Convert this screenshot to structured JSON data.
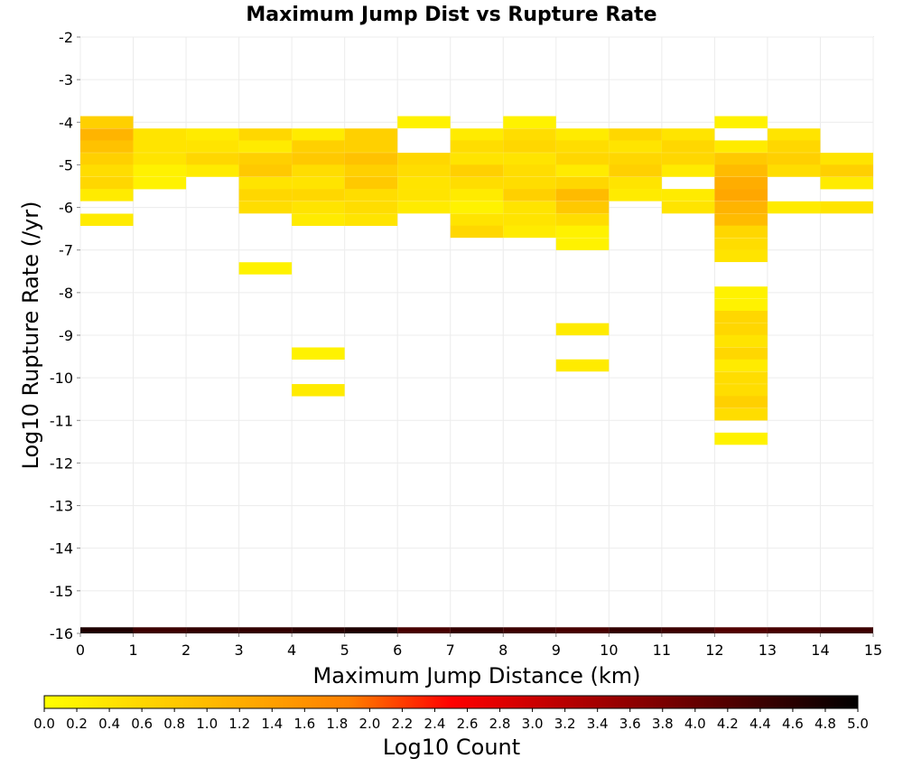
{
  "chart_data": {
    "type": "heatmap",
    "title": "Maximum Jump Dist vs Rupture Rate",
    "xlabel": "Maximum Jump Distance (km)",
    "ylabel": "Log10 Rupture Rate (/yr)",
    "xlim": [
      0,
      15
    ],
    "ylim": [
      -16,
      -2
    ],
    "x_ticks": [
      "0",
      "1",
      "2",
      "3",
      "4",
      "5",
      "6",
      "7",
      "8",
      "9",
      "10",
      "11",
      "12",
      "13",
      "14",
      "15"
    ],
    "y_ticks": [
      "-2",
      "-3",
      "-4",
      "-5",
      "-6",
      "-7",
      "-8",
      "-9",
      "-10",
      "-11",
      "-12",
      "-13",
      "-14",
      "-15",
      "-16"
    ],
    "bin_width_x": 1,
    "bin_height_y": 0.286,
    "grid": true,
    "colorbar": {
      "label": "Log10 Count",
      "range": [
        0,
        5
      ],
      "colormap": [
        "#ffff00",
        "#ffd500",
        "#ffaa00",
        "#ff7f00",
        "#ff0000",
        "#c00000",
        "#800000",
        "#400000",
        "#000000"
      ],
      "ticks": [
        "0.0",
        "0.2",
        "0.4",
        "0.6",
        "0.8",
        "1.0",
        "1.2",
        "1.4",
        "1.6",
        "1.8",
        "2.0",
        "2.2",
        "2.4",
        "2.6",
        "2.8",
        "3.0",
        "3.2",
        "3.4",
        "3.6",
        "3.8",
        "4.0",
        "4.2",
        "4.4",
        "4.6",
        "4.8",
        "5.0"
      ]
    },
    "cells": [
      {
        "x": 0,
        "y": -4.0,
        "v": 0.7
      },
      {
        "x": 0,
        "y": -4.29,
        "v": 1.1
      },
      {
        "x": 0,
        "y": -4.57,
        "v": 0.9
      },
      {
        "x": 0,
        "y": -4.86,
        "v": 0.7
      },
      {
        "x": 0,
        "y": -5.14,
        "v": 0.5
      },
      {
        "x": 0,
        "y": -5.43,
        "v": 0.6
      },
      {
        "x": 0,
        "y": -5.71,
        "v": 0.3
      },
      {
        "x": 0,
        "y": -6.29,
        "v": 0.3
      },
      {
        "x": 1,
        "y": -4.29,
        "v": 0.4
      },
      {
        "x": 1,
        "y": -4.57,
        "v": 0.4
      },
      {
        "x": 1,
        "y": -4.86,
        "v": 0.4
      },
      {
        "x": 1,
        "y": -5.14,
        "v": 0.2
      },
      {
        "x": 1,
        "y": -5.43,
        "v": 0.2
      },
      {
        "x": 2,
        "y": -4.29,
        "v": 0.3
      },
      {
        "x": 2,
        "y": -4.57,
        "v": 0.4
      },
      {
        "x": 2,
        "y": -4.86,
        "v": 0.6
      },
      {
        "x": 2,
        "y": -5.14,
        "v": 0.3
      },
      {
        "x": 3,
        "y": -4.29,
        "v": 0.6
      },
      {
        "x": 3,
        "y": -4.57,
        "v": 0.3
      },
      {
        "x": 3,
        "y": -4.86,
        "v": 0.7
      },
      {
        "x": 3,
        "y": -5.14,
        "v": 0.8
      },
      {
        "x": 3,
        "y": -5.43,
        "v": 0.4
      },
      {
        "x": 3,
        "y": -5.71,
        "v": 0.6
      },
      {
        "x": 3,
        "y": -6.0,
        "v": 0.5
      },
      {
        "x": 3,
        "y": -7.43,
        "v": 0.2
      },
      {
        "x": 4,
        "y": -4.29,
        "v": 0.3
      },
      {
        "x": 4,
        "y": -4.57,
        "v": 0.7
      },
      {
        "x": 4,
        "y": -4.86,
        "v": 0.8
      },
      {
        "x": 4,
        "y": -5.14,
        "v": 0.5
      },
      {
        "x": 4,
        "y": -5.43,
        "v": 0.4
      },
      {
        "x": 4,
        "y": -5.71,
        "v": 0.6
      },
      {
        "x": 4,
        "y": -6.0,
        "v": 0.4
      },
      {
        "x": 4,
        "y": -6.29,
        "v": 0.3
      },
      {
        "x": 4,
        "y": -9.43,
        "v": 0.2
      },
      {
        "x": 4,
        "y": -10.29,
        "v": 0.3
      },
      {
        "x": 5,
        "y": -4.29,
        "v": 0.7
      },
      {
        "x": 5,
        "y": -4.57,
        "v": 0.7
      },
      {
        "x": 5,
        "y": -4.86,
        "v": 0.9
      },
      {
        "x": 5,
        "y": -5.14,
        "v": 0.7
      },
      {
        "x": 5,
        "y": -5.43,
        "v": 0.8
      },
      {
        "x": 5,
        "y": -5.71,
        "v": 0.5
      },
      {
        "x": 5,
        "y": -6.0,
        "v": 0.5
      },
      {
        "x": 5,
        "y": -6.29,
        "v": 0.4
      },
      {
        "x": 6,
        "y": -4.0,
        "v": 0.2
      },
      {
        "x": 6,
        "y": -4.86,
        "v": 0.6
      },
      {
        "x": 6,
        "y": -5.14,
        "v": 0.5
      },
      {
        "x": 6,
        "y": -5.43,
        "v": 0.4
      },
      {
        "x": 6,
        "y": -5.71,
        "v": 0.4
      },
      {
        "x": 6,
        "y": -6.0,
        "v": 0.3
      },
      {
        "x": 7,
        "y": -4.29,
        "v": 0.3
      },
      {
        "x": 7,
        "y": -4.57,
        "v": 0.5
      },
      {
        "x": 7,
        "y": -4.86,
        "v": 0.4
      },
      {
        "x": 7,
        "y": -5.14,
        "v": 0.7
      },
      {
        "x": 7,
        "y": -5.43,
        "v": 0.5
      },
      {
        "x": 7,
        "y": -5.71,
        "v": 0.3
      },
      {
        "x": 7,
        "y": -6.0,
        "v": 0.2
      },
      {
        "x": 7,
        "y": -6.29,
        "v": 0.4
      },
      {
        "x": 7,
        "y": -6.57,
        "v": 0.6
      },
      {
        "x": 8,
        "y": -4.0,
        "v": 0.2
      },
      {
        "x": 8,
        "y": -4.29,
        "v": 0.5
      },
      {
        "x": 8,
        "y": -4.57,
        "v": 0.6
      },
      {
        "x": 8,
        "y": -4.86,
        "v": 0.4
      },
      {
        "x": 8,
        "y": -5.14,
        "v": 0.5
      },
      {
        "x": 8,
        "y": -5.43,
        "v": 0.5
      },
      {
        "x": 8,
        "y": -5.71,
        "v": 0.7
      },
      {
        "x": 8,
        "y": -6.0,
        "v": 0.4
      },
      {
        "x": 8,
        "y": -6.29,
        "v": 0.4
      },
      {
        "x": 8,
        "y": -6.57,
        "v": 0.3
      },
      {
        "x": 9,
        "y": -4.29,
        "v": 0.3
      },
      {
        "x": 9,
        "y": -4.57,
        "v": 0.5
      },
      {
        "x": 9,
        "y": -4.86,
        "v": 0.6
      },
      {
        "x": 9,
        "y": -5.14,
        "v": 0.3
      },
      {
        "x": 9,
        "y": -5.43,
        "v": 0.6
      },
      {
        "x": 9,
        "y": -5.71,
        "v": 1.0
      },
      {
        "x": 9,
        "y": -6.0,
        "v": 0.8
      },
      {
        "x": 9,
        "y": -6.29,
        "v": 0.5
      },
      {
        "x": 9,
        "y": -6.57,
        "v": 0.2
      },
      {
        "x": 9,
        "y": -6.86,
        "v": 0.2
      },
      {
        "x": 9,
        "y": -8.86,
        "v": 0.3
      },
      {
        "x": 9,
        "y": -9.71,
        "v": 0.3
      },
      {
        "x": 10,
        "y": -4.29,
        "v": 0.6
      },
      {
        "x": 10,
        "y": -4.57,
        "v": 0.4
      },
      {
        "x": 10,
        "y": -4.86,
        "v": 0.6
      },
      {
        "x": 10,
        "y": -5.14,
        "v": 0.7
      },
      {
        "x": 10,
        "y": -5.43,
        "v": 0.4
      },
      {
        "x": 10,
        "y": -5.71,
        "v": 0.3
      },
      {
        "x": 11,
        "y": -4.29,
        "v": 0.4
      },
      {
        "x": 11,
        "y": -4.57,
        "v": 0.6
      },
      {
        "x": 11,
        "y": -4.86,
        "v": 0.6
      },
      {
        "x": 11,
        "y": -5.14,
        "v": 0.3
      },
      {
        "x": 11,
        "y": -5.71,
        "v": 0.3
      },
      {
        "x": 11,
        "y": -6.0,
        "v": 0.4
      },
      {
        "x": 12,
        "y": -4.0,
        "v": 0.2
      },
      {
        "x": 12,
        "y": -4.57,
        "v": 0.3
      },
      {
        "x": 12,
        "y": -4.86,
        "v": 0.8
      },
      {
        "x": 12,
        "y": -5.14,
        "v": 1.0
      },
      {
        "x": 12,
        "y": -5.43,
        "v": 1.2
      },
      {
        "x": 12,
        "y": -5.71,
        "v": 1.3
      },
      {
        "x": 12,
        "y": -6.0,
        "v": 1.1
      },
      {
        "x": 12,
        "y": -6.29,
        "v": 1.0
      },
      {
        "x": 12,
        "y": -6.57,
        "v": 0.6
      },
      {
        "x": 12,
        "y": -6.86,
        "v": 0.5
      },
      {
        "x": 12,
        "y": -7.14,
        "v": 0.4
      },
      {
        "x": 12,
        "y": -8.0,
        "v": 0.2
      },
      {
        "x": 12,
        "y": -8.29,
        "v": 0.2
      },
      {
        "x": 12,
        "y": -8.57,
        "v": 0.6
      },
      {
        "x": 12,
        "y": -8.86,
        "v": 0.6
      },
      {
        "x": 12,
        "y": -9.14,
        "v": 0.4
      },
      {
        "x": 12,
        "y": -9.43,
        "v": 0.6
      },
      {
        "x": 12,
        "y": -9.71,
        "v": 0.3
      },
      {
        "x": 12,
        "y": -10.0,
        "v": 0.5
      },
      {
        "x": 12,
        "y": -10.29,
        "v": 0.5
      },
      {
        "x": 12,
        "y": -10.57,
        "v": 0.7
      },
      {
        "x": 12,
        "y": -10.86,
        "v": 0.5
      },
      {
        "x": 12,
        "y": -11.43,
        "v": 0.2
      },
      {
        "x": 13,
        "y": -4.29,
        "v": 0.4
      },
      {
        "x": 13,
        "y": -4.57,
        "v": 0.6
      },
      {
        "x": 13,
        "y": -4.86,
        "v": 0.7
      },
      {
        "x": 13,
        "y": -5.14,
        "v": 0.5
      },
      {
        "x": 13,
        "y": -6.0,
        "v": 0.3
      },
      {
        "x": 14,
        "y": -4.86,
        "v": 0.4
      },
      {
        "x": 14,
        "y": -5.14,
        "v": 0.7
      },
      {
        "x": 14,
        "y": -5.43,
        "v": 0.3
      },
      {
        "x": 14,
        "y": -6.0,
        "v": 0.4
      },
      {
        "x": 0,
        "y": -16.0,
        "v": 4.7
      },
      {
        "x": 1,
        "y": -16.0,
        "v": 4.4
      },
      {
        "x": 2,
        "y": -16.0,
        "v": 4.5
      },
      {
        "x": 3,
        "y": -16.0,
        "v": 4.5
      },
      {
        "x": 4,
        "y": -16.0,
        "v": 4.6
      },
      {
        "x": 5,
        "y": -16.0,
        "v": 4.7
      },
      {
        "x": 6,
        "y": -16.0,
        "v": 4.3
      },
      {
        "x": 7,
        "y": -16.0,
        "v": 4.5
      },
      {
        "x": 8,
        "y": -16.0,
        "v": 4.4
      },
      {
        "x": 9,
        "y": -16.0,
        "v": 4.3
      },
      {
        "x": 10,
        "y": -16.0,
        "v": 4.5
      },
      {
        "x": 11,
        "y": -16.0,
        "v": 4.4
      },
      {
        "x": 12,
        "y": -16.0,
        "v": 4.2
      },
      {
        "x": 13,
        "y": -16.0,
        "v": 4.3
      },
      {
        "x": 14,
        "y": -16.0,
        "v": 4.4
      }
    ]
  }
}
